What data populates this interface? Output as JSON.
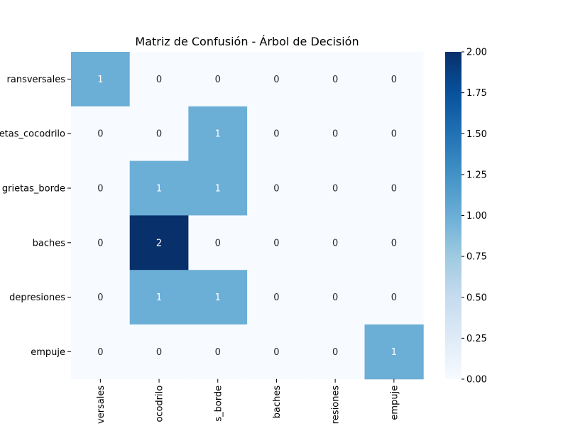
{
  "chart_data": {
    "type": "heatmap",
    "title": "Matriz de Confusión - Árbol de Decisión",
    "row_labels": [
      "ransversales",
      "etas_cocodrilo",
      "grietas_borde",
      "baches",
      "depresiones",
      "empuje"
    ],
    "col_labels": [
      "versales",
      "ocodrilo",
      "s_borde",
      "baches",
      "resiones",
      "empuje"
    ],
    "matrix": [
      [
        1,
        0,
        0,
        0,
        0,
        0
      ],
      [
        0,
        0,
        1,
        0,
        0,
        0
      ],
      [
        0,
        1,
        1,
        0,
        0,
        0
      ],
      [
        0,
        2,
        0,
        0,
        0,
        0
      ],
      [
        0,
        1,
        1,
        0,
        0,
        0
      ],
      [
        0,
        0,
        0,
        0,
        0,
        1
      ]
    ],
    "colormap": "Blues",
    "colors": {
      "low": "#f7fbff",
      "mid": "#6baed6",
      "high": "#08306b"
    },
    "vmin": 0,
    "vmax": 2,
    "colorbar_ticks": [
      "0.00",
      "0.25",
      "0.50",
      "0.75",
      "1.00",
      "1.25",
      "1.50",
      "1.75",
      "2.00"
    ],
    "xlabel": "",
    "ylabel": ""
  }
}
